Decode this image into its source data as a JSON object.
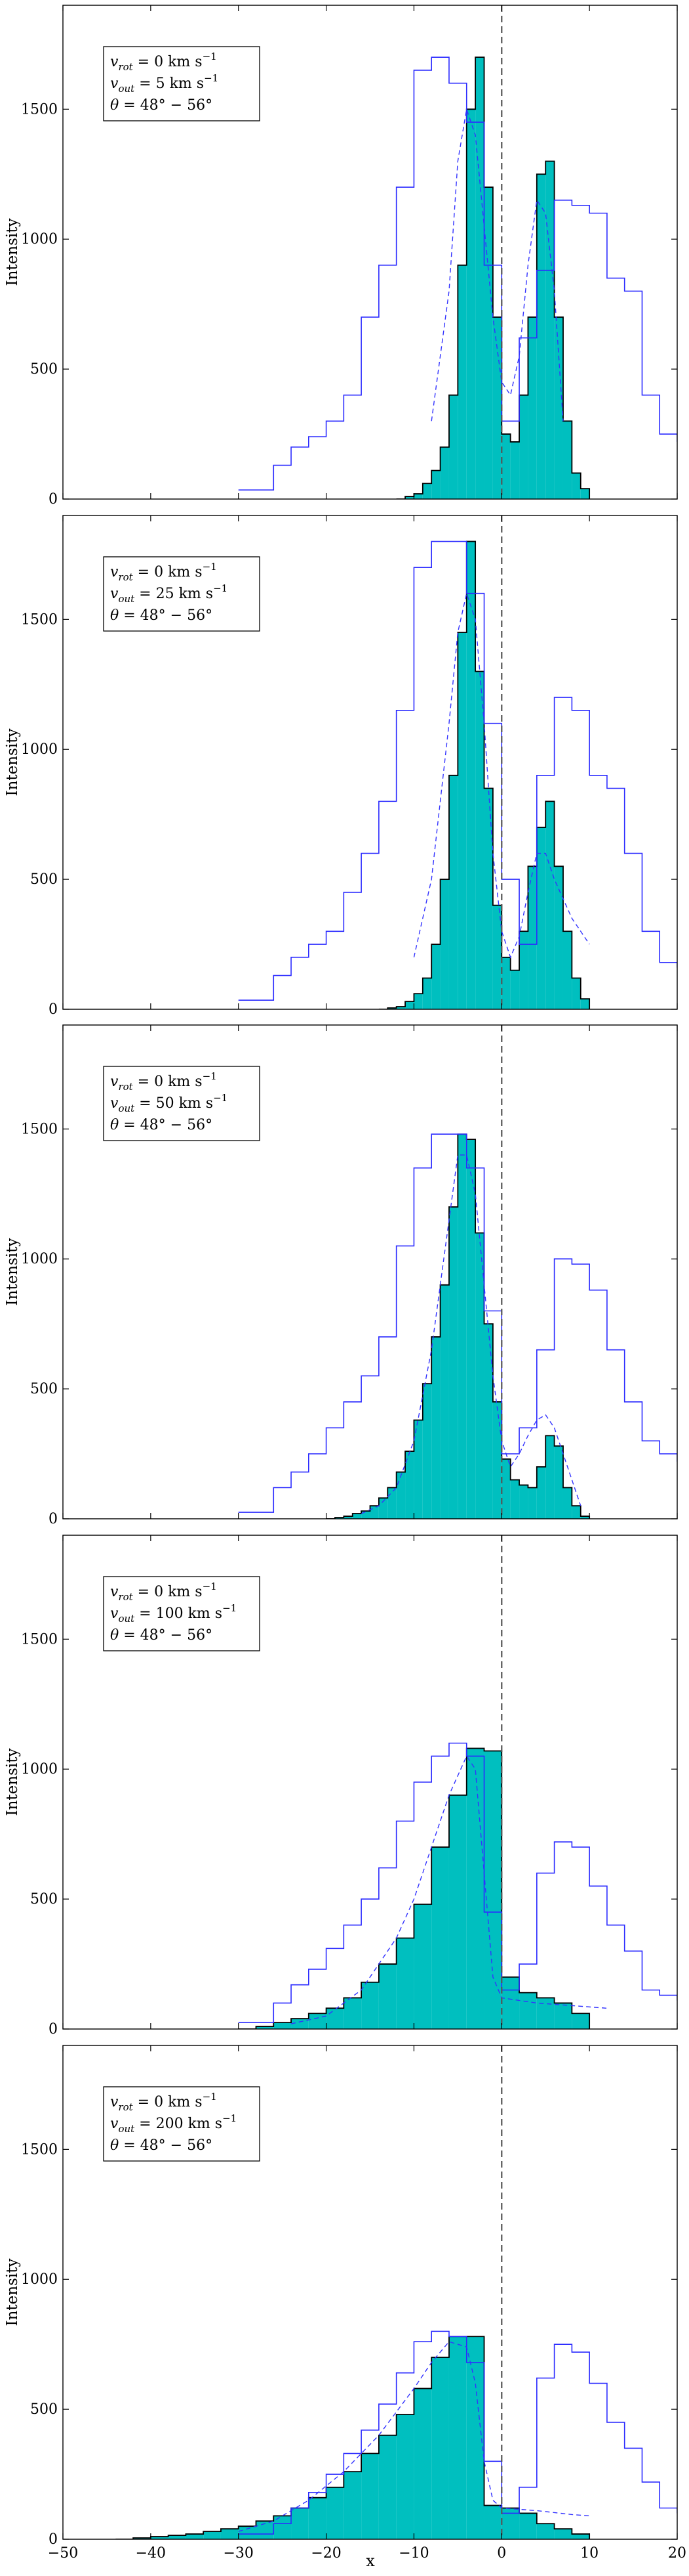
{
  "chart_data": {
    "type": "histogram",
    "xlabel": "x",
    "ylabel": "Intensity",
    "xlim": [
      -50,
      20
    ],
    "ylim": [
      0,
      1900
    ],
    "xticks": [
      -50,
      -40,
      -30,
      -20,
      -10,
      0,
      10,
      20
    ],
    "yticks": [
      0,
      500,
      1000,
      1500
    ],
    "colors": {
      "fill": "#00bfbf",
      "outline": "#000000",
      "blue_line": "#2b2bff",
      "dashed_fit": "#3333ff",
      "zero_line": "#555555"
    },
    "panels": [
      {
        "legend": [
          "v_rot = 0 km s^-1",
          "v_out = 5 km s^-1",
          "θ = 48° − 56°"
        ],
        "legend_parts": [
          {
            "name": "v",
            "sub": "rot",
            "rest": " = 0 km s",
            "sup": "−1"
          },
          {
            "name": "v",
            "sub": "out",
            "rest": " = 5 km s",
            "sup": "−1"
          },
          {
            "name": "θ",
            "sub": "",
            "rest": " = 48° − 56°",
            "sup": ""
          }
        ],
        "filled_hist": {
          "x": [
            -12,
            -11,
            -10,
            -9,
            -8,
            -7,
            -6,
            -5,
            -4,
            -3,
            -2,
            -1,
            0,
            1,
            2,
            3,
            4,
            5,
            6,
            7,
            8,
            9,
            10
          ],
          "y": [
            0,
            10,
            20,
            60,
            110,
            200,
            400,
            900,
            1500,
            1700,
            1200,
            700,
            250,
            220,
            400,
            700,
            1250,
            1300,
            700,
            300,
            100,
            40,
            0
          ]
        },
        "blue_hist": {
          "x": [
            -30,
            -28,
            -26,
            -24,
            -22,
            -20,
            -18,
            -16,
            -14,
            -12,
            -10,
            -8,
            -6,
            -4,
            -2,
            0,
            2,
            4,
            6,
            8,
            10,
            12,
            14,
            16,
            18,
            20
          ],
          "y": [
            35,
            35,
            130,
            200,
            240,
            300,
            400,
            700,
            900,
            1200,
            1650,
            1700,
            1600,
            1450,
            900,
            300,
            620,
            880,
            1150,
            1130,
            1100,
            850,
            800,
            400,
            250,
            220
          ]
        },
        "dashed": {
          "x": [
            -8,
            -6,
            -5,
            -4,
            -3,
            -2,
            -1,
            0,
            1,
            2,
            3,
            4,
            5,
            6,
            7
          ],
          "y": [
            300,
            800,
            1300,
            1500,
            1400,
            1050,
            700,
            450,
            400,
            550,
            900,
            1150,
            1100,
            800,
            300
          ]
        }
      },
      {
        "legend": [
          "v_rot = 0 km s^-1",
          "v_out = 25 km s^-1",
          "θ = 48° − 56°"
        ],
        "legend_parts": [
          {
            "name": "v",
            "sub": "rot",
            "rest": " = 0 km s",
            "sup": "−1"
          },
          {
            "name": "v",
            "sub": "out",
            "rest": " = 25 km s",
            "sup": "−1"
          },
          {
            "name": "θ",
            "sub": "",
            "rest": " = 48° − 56°",
            "sup": ""
          }
        ],
        "filled_hist": {
          "x": [
            -14,
            -13,
            -12,
            -11,
            -10,
            -9,
            -8,
            -7,
            -6,
            -5,
            -4,
            -3,
            -2,
            -1,
            0,
            1,
            2,
            3,
            4,
            5,
            6,
            7,
            8,
            9,
            10
          ],
          "y": [
            0,
            5,
            10,
            30,
            60,
            120,
            250,
            500,
            900,
            1450,
            1800,
            1300,
            850,
            400,
            200,
            150,
            300,
            550,
            700,
            800,
            550,
            300,
            120,
            40,
            0
          ]
        },
        "blue_hist": {
          "x": [
            -30,
            -28,
            -26,
            -24,
            -22,
            -20,
            -18,
            -16,
            -14,
            -12,
            -10,
            -8,
            -6,
            -4,
            -2,
            0,
            2,
            4,
            6,
            8,
            10,
            12,
            14,
            16,
            18,
            20
          ],
          "y": [
            35,
            35,
            130,
            200,
            250,
            300,
            450,
            600,
            800,
            1150,
            1700,
            1800,
            1800,
            1600,
            1100,
            500,
            250,
            900,
            1200,
            1150,
            900,
            850,
            600,
            300,
            180,
            160
          ]
        },
        "dashed": {
          "x": [
            -10,
            -8,
            -6,
            -5,
            -4,
            -3,
            -2,
            -1,
            0,
            1,
            2,
            3,
            4,
            5,
            6,
            8,
            10
          ],
          "y": [
            200,
            500,
            1100,
            1450,
            1600,
            1500,
            1100,
            600,
            300,
            200,
            280,
            450,
            600,
            600,
            500,
            350,
            250
          ]
        }
      },
      {
        "legend": [
          "v_rot = 0 km s^-1",
          "v_out = 50 km s^-1",
          "θ = 48° − 56°"
        ],
        "legend_parts": [
          {
            "name": "v",
            "sub": "rot",
            "rest": " = 0 km s",
            "sup": "−1"
          },
          {
            "name": "v",
            "sub": "out",
            "rest": " = 50 km s",
            "sup": "−1"
          },
          {
            "name": "θ",
            "sub": "",
            "rest": " = 48° − 56°",
            "sup": ""
          }
        ],
        "filled_hist": {
          "x": [
            -20,
            -19,
            -18,
            -17,
            -16,
            -15,
            -14,
            -13,
            -12,
            -11,
            -10,
            -9,
            -8,
            -7,
            -6,
            -5,
            -4,
            -3,
            -2,
            -1,
            0,
            1,
            2,
            3,
            4,
            5,
            6,
            7,
            8,
            9,
            10
          ],
          "y": [
            0,
            5,
            10,
            20,
            30,
            50,
            80,
            120,
            180,
            260,
            380,
            520,
            700,
            900,
            1200,
            1480,
            1460,
            1100,
            750,
            450,
            230,
            150,
            130,
            120,
            200,
            320,
            280,
            120,
            50,
            10,
            0
          ]
        },
        "blue_hist": {
          "x": [
            -30,
            -28,
            -26,
            -24,
            -22,
            -20,
            -18,
            -16,
            -14,
            -12,
            -10,
            -8,
            -6,
            -4,
            -2,
            0,
            2,
            4,
            6,
            8,
            10,
            12,
            14,
            16,
            18,
            20
          ],
          "y": [
            25,
            25,
            120,
            180,
            250,
            350,
            450,
            550,
            700,
            1050,
            1350,
            1480,
            1480,
            1350,
            800,
            250,
            350,
            650,
            1000,
            980,
            880,
            650,
            450,
            300,
            250,
            220
          ]
        },
        "dashed": {
          "x": [
            -16,
            -14,
            -12,
            -10,
            -8,
            -6,
            -5,
            -4,
            -3,
            -2,
            -1,
            0,
            1,
            2,
            3,
            4,
            5,
            6,
            7,
            8,
            9
          ],
          "y": [
            20,
            50,
            120,
            300,
            650,
            1150,
            1400,
            1400,
            1250,
            900,
            550,
            300,
            200,
            250,
            320,
            380,
            400,
            350,
            250,
            150,
            50
          ]
        }
      },
      {
        "legend": [
          "v_rot = 0 km s^-1",
          "v_out = 100 km s^-1",
          "θ = 48° − 56°"
        ],
        "legend_parts": [
          {
            "name": "v",
            "sub": "rot",
            "rest": " = 0 km s",
            "sup": "−1"
          },
          {
            "name": "v",
            "sub": "out",
            "rest": " = 100 km s",
            "sup": "−1"
          },
          {
            "name": "θ",
            "sub": "",
            "rest": " = 48° − 56°",
            "sup": ""
          }
        ],
        "filled_hist": {
          "x": [
            -30,
            -28,
            -26,
            -24,
            -22,
            -20,
            -18,
            -16,
            -14,
            -12,
            -10,
            -8,
            -6,
            -4,
            -2,
            0,
            2,
            4,
            6,
            8,
            10
          ],
          "y": [
            0,
            10,
            25,
            40,
            60,
            80,
            120,
            180,
            250,
            350,
            480,
            700,
            900,
            1080,
            1070,
            200,
            140,
            120,
            100,
            60,
            0
          ]
        },
        "blue_hist": {
          "x": [
            -30,
            -28,
            -26,
            -24,
            -22,
            -20,
            -18,
            -16,
            -14,
            -12,
            -10,
            -8,
            -6,
            -4,
            -2,
            0,
            2,
            4,
            6,
            8,
            10,
            12,
            14,
            16,
            18,
            20
          ],
          "y": [
            25,
            25,
            100,
            170,
            230,
            310,
            400,
            500,
            620,
            800,
            950,
            1050,
            1100,
            1050,
            450,
            150,
            250,
            600,
            720,
            700,
            550,
            400,
            300,
            150,
            130,
            110
          ]
        },
        "dashed": {
          "x": [
            -24,
            -20,
            -16,
            -12,
            -10,
            -8,
            -6,
            -4,
            -3,
            -2,
            -1,
            0,
            4,
            8,
            12
          ],
          "y": [
            20,
            50,
            150,
            350,
            500,
            700,
            900,
            1050,
            1000,
            600,
            200,
            120,
            100,
            90,
            80
          ]
        }
      },
      {
        "legend": [
          "v_rot = 0 km s^-1",
          "v_out = 200 km s^-1",
          "θ = 48° − 56°"
        ],
        "legend_parts": [
          {
            "name": "v",
            "sub": "rot",
            "rest": " = 0 km s",
            "sup": "−1"
          },
          {
            "name": "v",
            "sub": "out",
            "rest": " = 200 km s",
            "sup": "−1"
          },
          {
            "name": "θ",
            "sub": "",
            "rest": " = 48° − 56°",
            "sup": ""
          }
        ],
        "filled_hist": {
          "x": [
            -44,
            -42,
            -40,
            -38,
            -36,
            -34,
            -32,
            -30,
            -28,
            -26,
            -24,
            -22,
            -20,
            -18,
            -16,
            -14,
            -12,
            -10,
            -8,
            -6,
            -4,
            -2,
            0,
            2,
            4,
            6,
            8,
            10
          ],
          "y": [
            0,
            5,
            10,
            15,
            20,
            30,
            40,
            50,
            70,
            90,
            120,
            160,
            200,
            260,
            330,
            400,
            480,
            580,
            700,
            780,
            780,
            130,
            120,
            100,
            60,
            40,
            20,
            0
          ]
        },
        "blue_hist": {
          "x": [
            -30,
            -28,
            -26,
            -24,
            -22,
            -20,
            -18,
            -16,
            -14,
            -12,
            -10,
            -8,
            -6,
            -4,
            -2,
            0,
            2,
            4,
            6,
            8,
            10,
            12,
            14,
            16,
            18,
            20
          ],
          "y": [
            20,
            20,
            60,
            120,
            180,
            250,
            330,
            420,
            520,
            640,
            760,
            800,
            780,
            680,
            300,
            100,
            200,
            620,
            750,
            720,
            600,
            450,
            350,
            220,
            120,
            100
          ]
        },
        "dashed": {
          "x": [
            -30,
            -26,
            -22,
            -18,
            -14,
            -10,
            -8,
            -6,
            -4,
            -3,
            -2,
            -1,
            0,
            4,
            8,
            10
          ],
          "y": [
            30,
            70,
            150,
            260,
            400,
            580,
            680,
            760,
            740,
            600,
            300,
            150,
            120,
            110,
            95,
            90
          ]
        }
      }
    ]
  }
}
